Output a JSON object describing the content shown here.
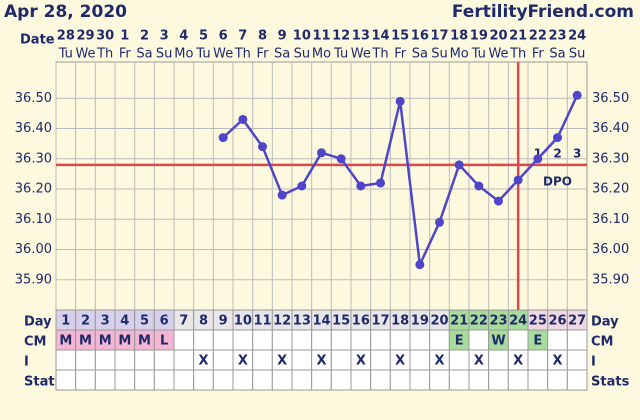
{
  "header": {
    "date": "Apr 28, 2020",
    "site": "FertilityFriend.com"
  },
  "chart_data": {
    "type": "line",
    "row_labels": {
      "date": "Date",
      "day": "Day",
      "cm": "CM",
      "intercourse": "I",
      "stats": "Stats"
    },
    "categories": [
      "28",
      "29",
      "30",
      "1",
      "2",
      "3",
      "4",
      "5",
      "6",
      "7",
      "8",
      "9",
      "10",
      "11",
      "12",
      "13",
      "14",
      "15",
      "16",
      "17",
      "18",
      "19",
      "20",
      "21",
      "22",
      "23",
      "24"
    ],
    "weekdays": [
      "Tu",
      "We",
      "Th",
      "Fr",
      "Sa",
      "Su",
      "Mo",
      "Tu",
      "We",
      "Th",
      "Fr",
      "Sa",
      "Su",
      "Mo",
      "Tu",
      "We",
      "Th",
      "Fr",
      "Sa",
      "Su",
      "Mo",
      "Tu",
      "We",
      "Th",
      "Fr",
      "Sa",
      "Su"
    ],
    "days": [
      1,
      2,
      3,
      4,
      5,
      6,
      7,
      8,
      9,
      10,
      11,
      12,
      13,
      14,
      15,
      16,
      17,
      18,
      19,
      20,
      21,
      22,
      23,
      24,
      25,
      26,
      27
    ],
    "series": [
      {
        "name": "Temperature",
        "color": "#4f45c9",
        "values": [
          null,
          null,
          null,
          null,
          null,
          null,
          null,
          null,
          36.37,
          36.43,
          36.34,
          36.18,
          36.21,
          36.32,
          36.3,
          36.21,
          36.22,
          36.49,
          35.95,
          36.09,
          36.28,
          36.21,
          36.16,
          36.23,
          36.3,
          36.37,
          36.51
        ]
      }
    ],
    "coverline": 36.28,
    "coverline_color": "#e0474c",
    "ovulation_day": 24,
    "dpo": {
      "label": "DPO",
      "marks": [
        "1",
        "2",
        "3"
      ]
    },
    "cm": [
      "M",
      "M",
      "M",
      "M",
      "M",
      "L",
      null,
      null,
      null,
      null,
      null,
      null,
      null,
      null,
      null,
      null,
      null,
      null,
      null,
      null,
      "E",
      null,
      "W",
      null,
      "E",
      null,
      null
    ],
    "intercourse": [
      null,
      null,
      null,
      null,
      null,
      null,
      null,
      "X",
      null,
      "X",
      null,
      "X",
      null,
      "X",
      null,
      "X",
      null,
      "X",
      null,
      "X",
      null,
      "X",
      null,
      "X",
      null,
      "X",
      null
    ],
    "ylim": [
      35.8,
      36.62
    ],
    "yticks": [
      {
        "value": 35.9,
        "label": "35.90"
      },
      {
        "value": 36.0,
        "label": "36.00"
      },
      {
        "value": 36.1,
        "label": "36.10"
      },
      {
        "value": 36.2,
        "label": "36.20"
      },
      {
        "value": 36.3,
        "label": "36.30"
      },
      {
        "value": 36.4,
        "label": "36.40"
      },
      {
        "value": 36.5,
        "label": "36.50"
      }
    ],
    "grid": true
  }
}
